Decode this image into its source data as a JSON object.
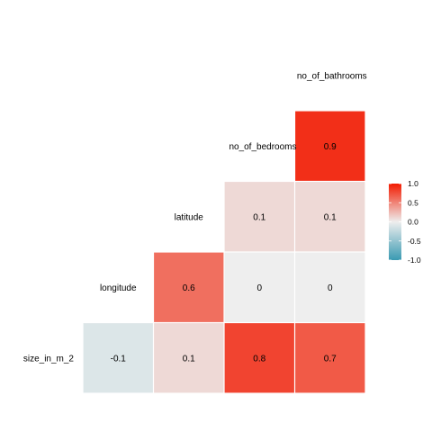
{
  "chart_data": {
    "type": "heatmap",
    "variables": [
      "size_in_m_2",
      "longitude",
      "latitude",
      "no_of_bedrooms",
      "no_of_bathrooms"
    ],
    "cells": [
      {
        "row": "longitude",
        "col": "size_in_m_2",
        "value": -0.1,
        "label": "-0.1"
      },
      {
        "row": "latitude",
        "col": "size_in_m_2",
        "value": 0.1,
        "label": "0.1"
      },
      {
        "row": "latitude",
        "col": "longitude",
        "value": 0.6,
        "label": "0.6"
      },
      {
        "row": "no_of_bedrooms",
        "col": "size_in_m_2",
        "value": 0.8,
        "label": "0.8"
      },
      {
        "row": "no_of_bedrooms",
        "col": "longitude",
        "value": 0,
        "label": "0"
      },
      {
        "row": "no_of_bedrooms",
        "col": "latitude",
        "value": 0.1,
        "label": "0.1"
      },
      {
        "row": "no_of_bathrooms",
        "col": "size_in_m_2",
        "value": 0.7,
        "label": "0.7"
      },
      {
        "row": "no_of_bathrooms",
        "col": "longitude",
        "value": 0,
        "label": "0"
      },
      {
        "row": "no_of_bathrooms",
        "col": "latitude",
        "value": 0.1,
        "label": "0.1"
      },
      {
        "row": "no_of_bathrooms",
        "col": "no_of_bedrooms",
        "value": 0.9,
        "label": "0.9"
      }
    ],
    "color_scale": {
      "low": "#3A9AB2",
      "mid": "#EEEEEE",
      "high": "#F21A00"
    },
    "limits": [
      -1,
      1
    ],
    "legend": {
      "placement": "right",
      "ticks": [
        1.0,
        0.5,
        0.0,
        -0.5,
        -1.0
      ],
      "tick_labels": [
        "1.0",
        "0.5",
        "0.0",
        "-0.5",
        "-1.0"
      ]
    }
  }
}
